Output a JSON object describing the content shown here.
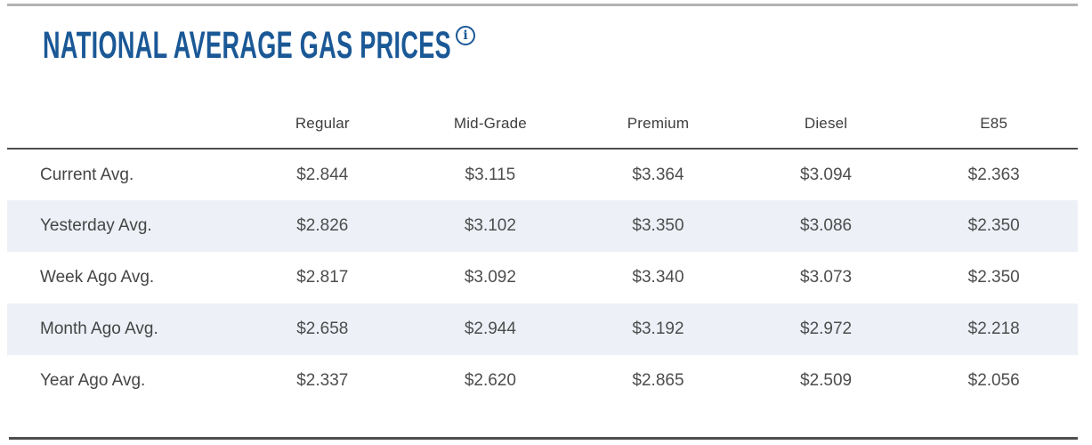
{
  "header": {
    "title": "NATIONAL AVERAGE GAS PRICES",
    "info_icon_glyph": "i"
  },
  "table": {
    "columns": [
      "Regular",
      "Mid-Grade",
      "Premium",
      "Diesel",
      "E85"
    ],
    "rows": [
      {
        "label": "Current Avg.",
        "values": [
          "$2.844",
          "$3.115",
          "$3.364",
          "$3.094",
          "$2.363"
        ]
      },
      {
        "label": "Yesterday Avg.",
        "values": [
          "$2.826",
          "$3.102",
          "$3.350",
          "$3.086",
          "$2.350"
        ]
      },
      {
        "label": "Week Ago Avg.",
        "values": [
          "$2.817",
          "$3.092",
          "$3.340",
          "$3.073",
          "$2.350"
        ]
      },
      {
        "label": "Month Ago Avg.",
        "values": [
          "$2.658",
          "$2.944",
          "$3.192",
          "$2.972",
          "$2.218"
        ]
      },
      {
        "label": "Year Ago Avg.",
        "values": [
          "$2.337",
          "$2.620",
          "$2.865",
          "$2.509",
          "$2.056"
        ]
      }
    ]
  },
  "colors": {
    "title_blue": "#1a5896",
    "row_stripe": "#edf1f7",
    "cell_text": "#4d4d4d",
    "header_text": "#3d3d3d",
    "top_border": "#b2b2b2",
    "dark_rule": "#4f4f4f"
  }
}
